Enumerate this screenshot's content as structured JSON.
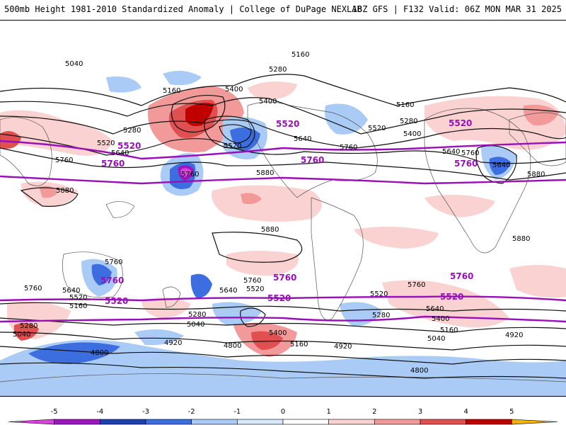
{
  "header": {
    "left_title": "500mb Height 1981-2010 Standardized Anomaly | College of DuPage NEXLAB",
    "right_title": "18Z GFS | F132 Valid: 06Z MON MAR 31 2025"
  },
  "colorbar": {
    "ticks": [
      "-5",
      "-4",
      "-3",
      "-2",
      "-1",
      "0",
      "1",
      "2",
      "3",
      "4",
      "5"
    ],
    "colors": [
      "#e040e0",
      "#9b16c0",
      "#1e3fb0",
      "#3c6ee0",
      "#a9cbf5",
      "#d8e8fb",
      "#ffffff",
      "#fbd2d2",
      "#f29a9a",
      "#e05050",
      "#c00000",
      "#f5b400"
    ]
  },
  "contour_labels": [
    {
      "name": "5040-nw",
      "text": "5040"
    },
    {
      "name": "5160-n",
      "text": "5160"
    },
    {
      "name": "5280-npac",
      "text": "5280"
    },
    {
      "name": "5160-pac",
      "text": "5160"
    },
    {
      "name": "5400-pac",
      "text": "5400"
    },
    {
      "name": "5280-wpac",
      "text": "5280"
    },
    {
      "name": "5520-wpac",
      "text": "5520"
    },
    {
      "name": "5640-wpac",
      "text": "5640"
    },
    {
      "name": "5520-epac",
      "text": "5520"
    },
    {
      "name": "5400-na",
      "text": "5400"
    },
    {
      "name": "5640-na",
      "text": "5640"
    },
    {
      "name": "5760-na",
      "text": "5760"
    },
    {
      "name": "5520-atl",
      "text": "5520"
    },
    {
      "name": "5280-atl",
      "text": "5280"
    },
    {
      "name": "5400-atl",
      "text": "5400"
    },
    {
      "name": "5160-atl",
      "text": "5160"
    },
    {
      "name": "5640-eu",
      "text": "5640"
    },
    {
      "name": "5760-eu",
      "text": "5760"
    },
    {
      "name": "5640-med",
      "text": "5640"
    },
    {
      "name": "5880-af",
      "text": "5880"
    },
    {
      "name": "5760-asia",
      "text": "5760"
    },
    {
      "name": "5880-asia",
      "text": "5880"
    },
    {
      "name": "5760-pac-low",
      "text": "5760"
    },
    {
      "name": "5880-pac",
      "text": "5880"
    },
    {
      "name": "5880-spac",
      "text": "5880"
    },
    {
      "name": "5880-saf",
      "text": "5880"
    },
    {
      "name": "5760-aus",
      "text": "5760"
    },
    {
      "name": "5760-sw",
      "text": "5760"
    },
    {
      "name": "5640-sw",
      "text": "5640"
    },
    {
      "name": "5520-sw",
      "text": "5520"
    },
    {
      "name": "5160-sw",
      "text": "5160"
    },
    {
      "name": "5280-sw",
      "text": "5280"
    },
    {
      "name": "5040-sw",
      "text": "5040"
    },
    {
      "name": "5760-spac",
      "text": "5760"
    },
    {
      "name": "5640-spac",
      "text": "5640"
    },
    {
      "name": "5520-spac",
      "text": "5520"
    },
    {
      "name": "5280-spac",
      "text": "5280"
    },
    {
      "name": "5040-spac",
      "text": "5040"
    },
    {
      "name": "4920-spac",
      "text": "4920"
    },
    {
      "name": "4800-spac",
      "text": "4800"
    },
    {
      "name": "5400-spac",
      "text": "5400"
    },
    {
      "name": "5160-spac",
      "text": "5160"
    },
    {
      "name": "4920-sa",
      "text": "4920"
    },
    {
      "name": "5520-satl",
      "text": "5520"
    },
    {
      "name": "5280-satl",
      "text": "5280"
    },
    {
      "name": "5760-satl",
      "text": "5760"
    },
    {
      "name": "5640-satl",
      "text": "5640"
    },
    {
      "name": "5400-satl",
      "text": "5400"
    },
    {
      "name": "5160-satl",
      "text": "5160"
    },
    {
      "name": "5040-satl",
      "text": "5040"
    },
    {
      "name": "4920-satl",
      "text": "4920"
    },
    {
      "name": "4800-sant",
      "text": "4800"
    },
    {
      "name": "4800-wsa",
      "text": "4800"
    }
  ],
  "bold_labels": [
    {
      "name": "5520-purple-w",
      "text": "5520"
    },
    {
      "name": "5760-purple-w",
      "text": "5760"
    },
    {
      "name": "5520-purple-na",
      "text": "5520"
    },
    {
      "name": "5760-purple-na",
      "text": "5760"
    },
    {
      "name": "5520-purple-e",
      "text": "5520"
    },
    {
      "name": "5760-purple-e",
      "text": "5760"
    },
    {
      "name": "5760-purple-sw",
      "text": "5760"
    },
    {
      "name": "5520-purple-sw",
      "text": "5520"
    },
    {
      "name": "5760-purple-sa",
      "text": "5760"
    },
    {
      "name": "5520-purple-sa",
      "text": "5520"
    },
    {
      "name": "5760-purple-se",
      "text": "5760"
    },
    {
      "name": "5520-purple-se",
      "text": "5520"
    }
  ]
}
